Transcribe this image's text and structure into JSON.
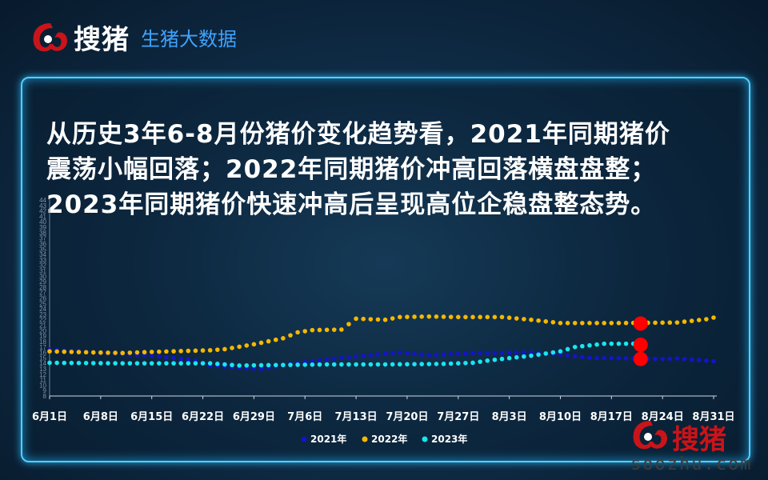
{
  "logo": {
    "brand": "搜猪",
    "subtitle": "生猪大数据"
  },
  "headline": {
    "lines": [
      "从历史3年6-8月份猪价变化趋势看，2021年同期猪价",
      "震荡小幅回落；2022年同期猪价冲高回落横盘盘整；",
      "2023年同期猪价快速冲高后呈现高位企稳盘整态势。"
    ]
  },
  "footer": {
    "brand": "搜猪",
    "url": "soozhu.com"
  },
  "colors": {
    "y2021": "#1414c8",
    "y2022": "#f5b800",
    "y2023": "#19e6f0",
    "marker": "#ff0000"
  },
  "chart_data": {
    "type": "scatter",
    "xlabel": "",
    "ylabel": "",
    "ylim": [
      8,
      44
    ],
    "x_ticks": [
      "6月1日",
      "6月8日",
      "6月15日",
      "6月22日",
      "6月29日",
      "7月6日",
      "7月13日",
      "7月20日",
      "7月27日",
      "8月3日",
      "8月10日",
      "8月17日",
      "8月24日",
      "8月31日"
    ],
    "y_ticks": [
      8,
      9,
      10,
      11,
      12,
      13,
      14,
      15,
      16,
      17,
      18,
      19,
      20,
      21,
      22,
      23,
      24,
      25,
      26,
      27,
      28,
      29,
      30,
      31,
      32,
      33,
      34,
      35,
      36,
      37,
      38,
      39,
      40,
      41,
      42,
      43,
      44
    ],
    "legend": "bottom",
    "x_count": 92,
    "series": [
      {
        "name": "2021年",
        "color": "#1414c8",
        "knots": [
          [
            0,
            16.5
          ],
          [
            4,
            16.2
          ],
          [
            8,
            15.8
          ],
          [
            14,
            15.4
          ],
          [
            20,
            14.5
          ],
          [
            22,
            13.6
          ],
          [
            26,
            13.2
          ],
          [
            29,
            13.0
          ],
          [
            34,
            14.1
          ],
          [
            40,
            15.0
          ],
          [
            48,
            16.0
          ],
          [
            52,
            15.5
          ],
          [
            58,
            15.9
          ],
          [
            66,
            16.0
          ],
          [
            70,
            15.6
          ],
          [
            74,
            15.0
          ],
          [
            80,
            14.9
          ],
          [
            84,
            14.8
          ],
          [
            86,
            14.9
          ],
          [
            91,
            14.4
          ]
        ]
      },
      {
        "name": "2022年",
        "color": "#f5b800",
        "knots": [
          [
            0,
            16.2
          ],
          [
            6,
            16.0
          ],
          [
            10,
            15.9
          ],
          [
            14,
            16.1
          ],
          [
            22,
            16.4
          ],
          [
            24,
            16.6
          ],
          [
            28,
            17.5
          ],
          [
            32,
            18.6
          ],
          [
            34,
            19.7
          ],
          [
            36,
            20.1
          ],
          [
            40,
            20.2
          ],
          [
            42,
            22.2
          ],
          [
            46,
            22.0
          ],
          [
            48,
            22.5
          ],
          [
            52,
            22.6
          ],
          [
            56,
            22.5
          ],
          [
            62,
            22.5
          ],
          [
            66,
            22.0
          ],
          [
            70,
            21.4
          ],
          [
            74,
            21.4
          ],
          [
            78,
            21.4
          ],
          [
            86,
            21.5
          ],
          [
            90,
            22.1
          ],
          [
            91,
            22.4
          ]
        ]
      },
      {
        "name": "2023年",
        "color": "#19e6f0",
        "knots": [
          [
            0,
            14.1
          ],
          [
            10,
            14.0
          ],
          [
            16,
            14.0
          ],
          [
            22,
            14.0
          ],
          [
            26,
            13.6
          ],
          [
            32,
            13.7
          ],
          [
            38,
            13.8
          ],
          [
            46,
            13.8
          ],
          [
            54,
            13.9
          ],
          [
            58,
            14.1
          ],
          [
            60,
            14.5
          ],
          [
            62,
            14.8
          ],
          [
            66,
            15.4
          ],
          [
            70,
            16.2
          ],
          [
            72,
            17.0
          ],
          [
            76,
            17.6
          ],
          [
            80,
            17.6
          ],
          [
            81,
            17.5
          ]
        ]
      }
    ],
    "highlight_day": 81,
    "highlight_values": [
      21.3,
      17.4,
      14.8
    ]
  }
}
